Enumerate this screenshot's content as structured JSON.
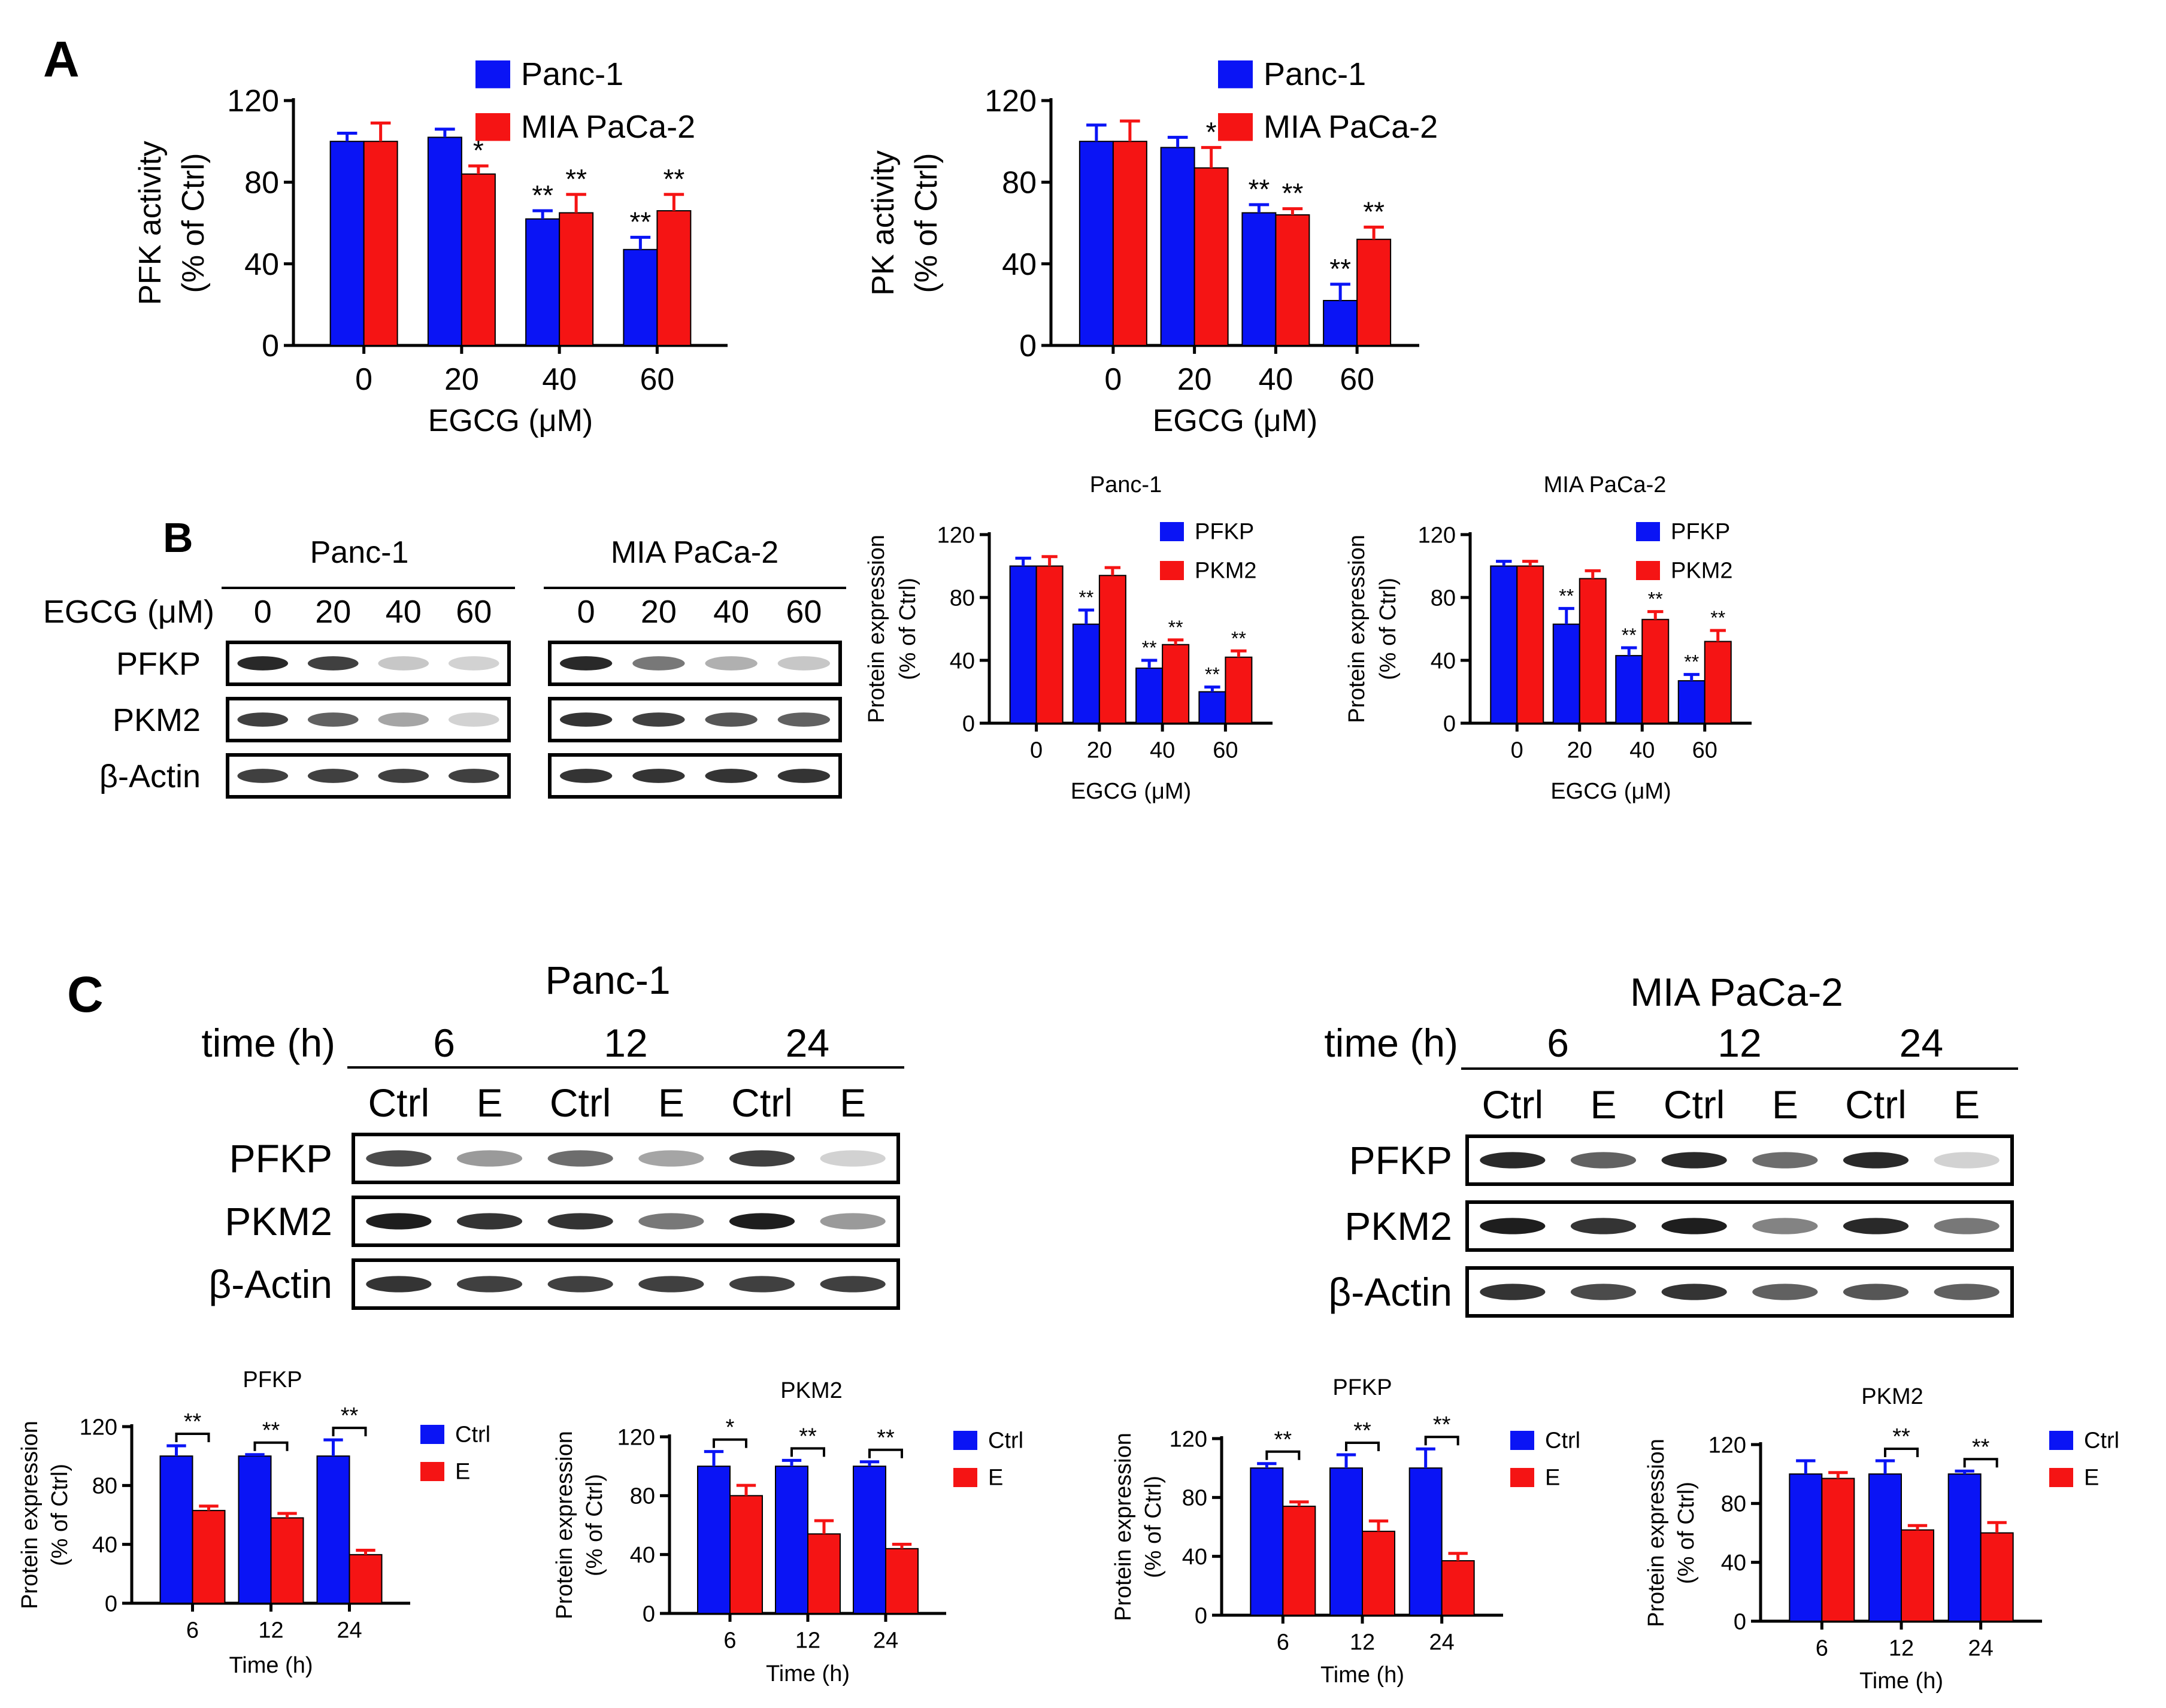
{
  "colors": {
    "blue": "#0a14f5",
    "red": "#f51414",
    "band": "#1e1e1e"
  },
  "panels": {
    "A": "A",
    "B": "B",
    "C": "C"
  },
  "blots": [
    {
      "id": "b-panc",
      "title": "Panc-1",
      "row_label_header": "EGCG (μM)",
      "lanes": [
        "0",
        "20",
        "40",
        "60"
      ],
      "rows": [
        {
          "label": "PFKP",
          "intensity": [
            0.95,
            0.85,
            0.25,
            0.2
          ]
        },
        {
          "label": "PKM2",
          "intensity": [
            0.85,
            0.7,
            0.4,
            0.2
          ]
        },
        {
          "label": "β-Actin",
          "intensity": [
            0.85,
            0.85,
            0.85,
            0.85
          ]
        }
      ]
    },
    {
      "id": "b-mia",
      "title": "MIA PaCa-2",
      "lanes": [
        "0",
        "20",
        "40",
        "60"
      ],
      "rows": [
        {
          "label": "",
          "intensity": [
            0.95,
            0.6,
            0.35,
            0.25
          ]
        },
        {
          "label": "",
          "intensity": [
            0.9,
            0.85,
            0.75,
            0.7
          ]
        },
        {
          "label": "",
          "intensity": [
            0.9,
            0.9,
            0.9,
            0.9
          ]
        }
      ]
    },
    {
      "id": "c-panc",
      "title": "Panc-1",
      "time_header": "time (h)",
      "time_groups": [
        "6",
        "12",
        "24"
      ],
      "lanes": [
        "Ctrl",
        "E",
        "Ctrl",
        "E",
        "Ctrl",
        "E"
      ],
      "rows": [
        {
          "label": "PFKP",
          "intensity": [
            0.8,
            0.45,
            0.65,
            0.4,
            0.85,
            0.2
          ]
        },
        {
          "label": "PKM2",
          "intensity": [
            1.0,
            0.9,
            0.9,
            0.6,
            1.0,
            0.45
          ]
        },
        {
          "label": "β-Actin",
          "intensity": [
            0.9,
            0.85,
            0.85,
            0.85,
            0.85,
            0.85
          ]
        }
      ]
    },
    {
      "id": "c-mia",
      "title": "MIA PaCa-2",
      "time_header": "time (h)",
      "time_groups": [
        "6",
        "12",
        "24"
      ],
      "lanes": [
        "Ctrl",
        "E",
        "Ctrl",
        "E",
        "Ctrl",
        "E"
      ],
      "rows": [
        {
          "label": "PFKP",
          "intensity": [
            0.95,
            0.7,
            0.95,
            0.65,
            0.95,
            0.2
          ]
        },
        {
          "label": "PKM2",
          "intensity": [
            1.0,
            0.9,
            1.0,
            0.55,
            0.95,
            0.6
          ]
        },
        {
          "label": "β-Actin",
          "intensity": [
            0.9,
            0.8,
            0.9,
            0.7,
            0.75,
            0.7
          ]
        }
      ]
    }
  ],
  "chart_data": [
    {
      "id": "a1",
      "type": "bar",
      "title": "",
      "ylabel": [
        "PFK activity",
        "(% of Ctrl)"
      ],
      "xlabel": "EGCG (μM)",
      "categories": [
        "0",
        "20",
        "40",
        "60"
      ],
      "ylim": [
        0,
        120
      ],
      "yticks": [
        "0",
        "40",
        "80",
        "120"
      ],
      "series": [
        {
          "name": "Panc-1",
          "color": "blue",
          "values": [
            100,
            102,
            62,
            47
          ],
          "errors": [
            4,
            4,
            4,
            6
          ],
          "sig": [
            "",
            "",
            "**",
            "**"
          ]
        },
        {
          "name": "MIA PaCa-2",
          "color": "red",
          "values": [
            100,
            84,
            65,
            66
          ],
          "errors": [
            9,
            4,
            9,
            8
          ],
          "sig": [
            "",
            "*",
            "**",
            "**"
          ]
        }
      ],
      "legend": "top-right"
    },
    {
      "id": "a2",
      "type": "bar",
      "title": "",
      "ylabel": [
        "PK activity",
        "(% of Ctrl)"
      ],
      "xlabel": "EGCG (μM)",
      "categories": [
        "0",
        "20",
        "40",
        "60"
      ],
      "ylim": [
        0,
        120
      ],
      "yticks": [
        "0",
        "40",
        "80",
        "120"
      ],
      "series": [
        {
          "name": "Panc-1",
          "color": "blue",
          "values": [
            100,
            97,
            65,
            22
          ],
          "errors": [
            8,
            5,
            4,
            8
          ],
          "sig": [
            "",
            "",
            "**",
            "**"
          ]
        },
        {
          "name": "MIA PaCa-2",
          "color": "red",
          "values": [
            100,
            87,
            64,
            52
          ],
          "errors": [
            10,
            10,
            3,
            6
          ],
          "sig": [
            "",
            "*",
            "**",
            "**"
          ]
        }
      ],
      "legend": "top-right"
    },
    {
      "id": "b1",
      "type": "bar",
      "title": "Panc-1",
      "ylabel": [
        "Protein expression",
        "(% of Ctrl)"
      ],
      "xlabel": "EGCG (μM)",
      "categories": [
        "0",
        "20",
        "40",
        "60"
      ],
      "ylim": [
        0,
        120
      ],
      "yticks": [
        "0",
        "40",
        "80",
        "120"
      ],
      "series": [
        {
          "name": "PFKP",
          "color": "blue",
          "values": [
            100,
            63,
            35,
            20
          ],
          "errors": [
            5,
            9,
            5,
            3
          ],
          "sig": [
            "",
            "**",
            "**",
            "**"
          ]
        },
        {
          "name": "PKM2",
          "color": "red",
          "values": [
            100,
            94,
            50,
            42
          ],
          "errors": [
            6,
            5,
            3,
            4
          ],
          "sig": [
            "",
            "",
            "**",
            "**"
          ]
        }
      ],
      "legend": "top-right"
    },
    {
      "id": "b2",
      "type": "bar",
      "title": "MIA PaCa-2",
      "ylabel": [
        "Protein expression",
        "(% of Ctrl)"
      ],
      "xlabel": "EGCG (μM)",
      "categories": [
        "0",
        "20",
        "40",
        "60"
      ],
      "ylim": [
        0,
        120
      ],
      "yticks": [
        "0",
        "40",
        "80",
        "120"
      ],
      "series": [
        {
          "name": "PFKP",
          "color": "blue",
          "values": [
            100,
            63,
            43,
            27
          ],
          "errors": [
            3,
            10,
            5,
            4
          ],
          "sig": [
            "",
            "**",
            "**",
            "**"
          ]
        },
        {
          "name": "PKM2",
          "color": "red",
          "values": [
            100,
            92,
            66,
            52
          ],
          "errors": [
            3,
            5,
            5,
            7
          ],
          "sig": [
            "",
            "",
            "**",
            "**"
          ]
        }
      ],
      "legend": "top-right"
    },
    {
      "id": "c1",
      "type": "bar",
      "title": "PFKP",
      "ylabel": [
        "Protein expression",
        "(% of Ctrl)"
      ],
      "xlabel": "Time (h)",
      "categories": [
        "6",
        "12",
        "24"
      ],
      "ylim": [
        0,
        120
      ],
      "yticks": [
        "0",
        "40",
        "80",
        "120"
      ],
      "series": [
        {
          "name": "Ctrl",
          "color": "blue",
          "values": [
            100,
            100,
            100
          ],
          "errors": [
            7,
            1,
            11
          ]
        },
        {
          "name": "E",
          "color": "red",
          "values": [
            63,
            58,
            33
          ],
          "errors": [
            3,
            3,
            3
          ]
        }
      ],
      "brackets": [
        "**",
        "**",
        "**"
      ],
      "legend": "right"
    },
    {
      "id": "c2",
      "type": "bar",
      "title": "PKM2",
      "ylabel": [
        "Protein expression",
        "(% of Ctrl)"
      ],
      "xlabel": "Time (h)",
      "categories": [
        "6",
        "12",
        "24"
      ],
      "ylim": [
        0,
        120
      ],
      "yticks": [
        "0",
        "40",
        "80",
        "120"
      ],
      "series": [
        {
          "name": "Ctrl",
          "color": "blue",
          "values": [
            100,
            100,
            100
          ],
          "errors": [
            10,
            4,
            3
          ]
        },
        {
          "name": "E",
          "color": "red",
          "values": [
            80,
            54,
            44
          ],
          "errors": [
            7,
            9,
            3
          ]
        }
      ],
      "brackets": [
        "*",
        "**",
        "**"
      ],
      "legend": "right"
    },
    {
      "id": "c3",
      "type": "bar",
      "title": "PFKP",
      "ylabel": [
        "Protein expression",
        "(% of Ctrl)"
      ],
      "xlabel": "Time (h)",
      "categories": [
        "6",
        "12",
        "24"
      ],
      "ylim": [
        0,
        120
      ],
      "yticks": [
        "0",
        "40",
        "80",
        "120"
      ],
      "series": [
        {
          "name": "Ctrl",
          "color": "blue",
          "values": [
            100,
            100,
            100
          ],
          "errors": [
            3,
            9,
            13
          ]
        },
        {
          "name": "E",
          "color": "red",
          "values": [
            74,
            57,
            37
          ],
          "errors": [
            3,
            7,
            5
          ]
        }
      ],
      "brackets": [
        "**",
        "**",
        "**"
      ],
      "legend": "right"
    },
    {
      "id": "c4",
      "type": "bar",
      "title": "PKM2",
      "ylabel": [
        "Protein expression",
        "(% of Ctrl)"
      ],
      "xlabel": "Time (h)",
      "categories": [
        "6",
        "12",
        "24"
      ],
      "ylim": [
        0,
        120
      ],
      "yticks": [
        "0",
        "40",
        "80",
        "120"
      ],
      "series": [
        {
          "name": "Ctrl",
          "color": "blue",
          "values": [
            100,
            100,
            100
          ],
          "errors": [
            9,
            9,
            2
          ]
        },
        {
          "name": "E",
          "color": "red",
          "values": [
            97,
            62,
            60
          ],
          "errors": [
            4,
            3,
            7
          ]
        }
      ],
      "brackets": [
        "",
        "**",
        "**"
      ],
      "legend": "right"
    }
  ]
}
